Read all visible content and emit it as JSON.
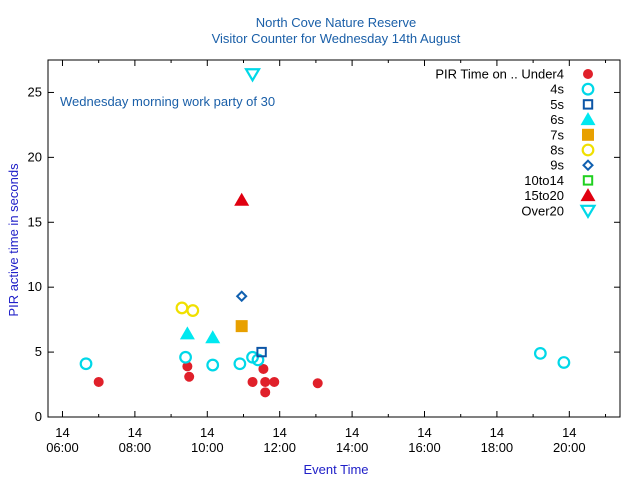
{
  "chart_data": {
    "type": "scatter",
    "title": "North Cove Nature Reserve",
    "subtitle": "Visitor Counter for Wednesday 14th August",
    "xlabel": "Event Time",
    "ylabel": "PIR active time in seconds",
    "xlim": [
      5.6,
      21.4
    ],
    "ylim": [
      0,
      27.5
    ],
    "grid": false,
    "legend_position": "top-right",
    "legend_title": "PIR Time on ..",
    "annotation": "Wednesday morning work party of 30",
    "x_ticks": [
      {
        "value": 6,
        "day": "14",
        "time": "06:00"
      },
      {
        "value": 8,
        "day": "14",
        "time": "08:00"
      },
      {
        "value": 10,
        "day": "14",
        "time": "10:00"
      },
      {
        "value": 12,
        "day": "14",
        "time": "12:00"
      },
      {
        "value": 14,
        "day": "14",
        "time": "14:00"
      },
      {
        "value": 16,
        "day": "14",
        "time": "16:00"
      },
      {
        "value": 18,
        "day": "14",
        "time": "18:00"
      },
      {
        "value": 20,
        "day": "14",
        "time": "20:00"
      }
    ],
    "y_ticks": [
      0,
      5,
      10,
      15,
      20,
      25
    ],
    "series": [
      {
        "name": "Under4",
        "marker": "circle-filled",
        "color": "#e0202a",
        "points": [
          [
            7.0,
            2.7
          ],
          [
            9.45,
            3.9
          ],
          [
            9.5,
            3.1
          ],
          [
            11.25,
            2.7
          ],
          [
            11.55,
            3.7
          ],
          [
            11.6,
            2.7
          ],
          [
            11.6,
            1.9
          ],
          [
            11.85,
            2.7
          ],
          [
            13.05,
            2.6
          ]
        ]
      },
      {
        "name": "4s",
        "marker": "circle-open",
        "color": "#00d8e8",
        "points": [
          [
            6.65,
            4.1
          ],
          [
            9.4,
            4.6
          ],
          [
            10.15,
            4.0
          ],
          [
            10.9,
            4.1
          ],
          [
            11.25,
            4.6
          ],
          [
            11.4,
            4.4
          ],
          [
            19.2,
            4.9
          ],
          [
            19.85,
            4.2
          ]
        ]
      },
      {
        "name": "5s",
        "marker": "square-open",
        "color": "#0c55a6",
        "points": [
          [
            11.5,
            5.0
          ]
        ]
      },
      {
        "name": "6s",
        "marker": "triangle-filled",
        "color": "#00e8f0",
        "points": [
          [
            9.45,
            6.4
          ],
          [
            10.15,
            6.1
          ]
        ]
      },
      {
        "name": "7s",
        "marker": "square-filled",
        "color": "#e8a000",
        "points": [
          [
            10.95,
            7.0
          ]
        ]
      },
      {
        "name": "8s",
        "marker": "circle-open",
        "color": "#f0e000",
        "points": [
          [
            9.3,
            8.4
          ],
          [
            9.6,
            8.2
          ]
        ]
      },
      {
        "name": "9s",
        "marker": "diamond-open",
        "color": "#1060b0",
        "points": [
          [
            10.95,
            9.3
          ]
        ]
      },
      {
        "name": "10to14",
        "marker": "square-open",
        "color": "#20d020",
        "points": []
      },
      {
        "name": "15to20",
        "marker": "triangle-filled",
        "color": "#e00010",
        "points": [
          [
            10.95,
            16.7
          ]
        ]
      },
      {
        "name": "Over20",
        "marker": "triangle-down-open",
        "color": "#00d8e8",
        "points": [
          [
            11.25,
            26.4
          ]
        ]
      }
    ]
  }
}
